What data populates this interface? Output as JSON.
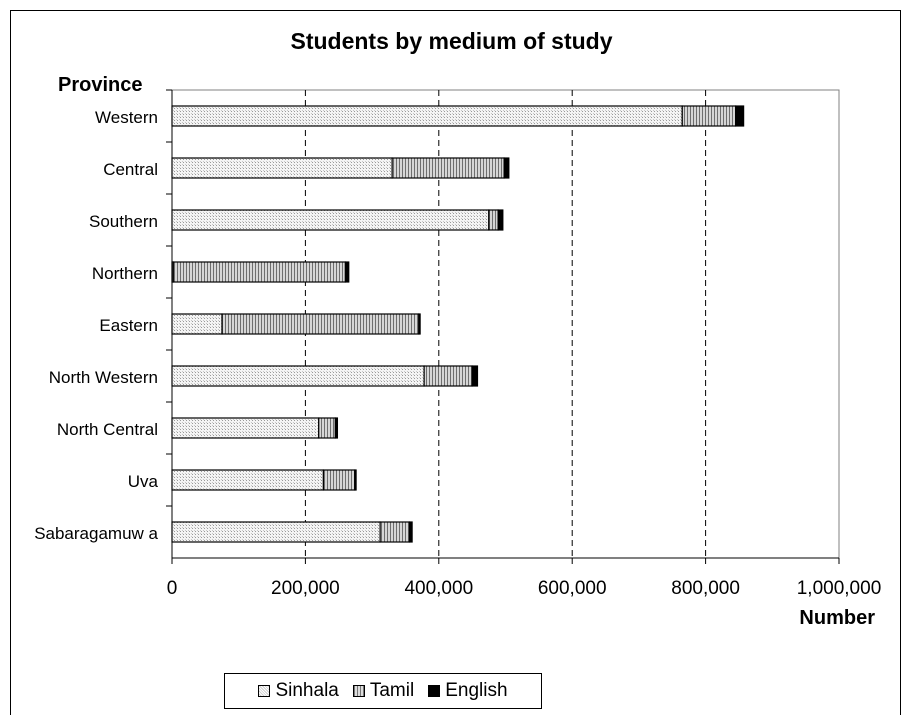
{
  "chart_data": {
    "type": "bar",
    "orientation": "horizontal",
    "stacked": true,
    "title": "Students by medium of study",
    "ylabel": "Province",
    "xlabel": "Number",
    "categories": [
      "Western",
      "Central",
      "Southern",
      "Northern",
      "Eastern",
      "North Western",
      "North Central",
      "Uva",
      "Sabaragamuw a"
    ],
    "series": [
      {
        "name": "Sinhala",
        "values": [
          765000,
          330000,
          475000,
          2000,
          75000,
          378000,
          220000,
          227000,
          312000
        ],
        "color": "#ebebeb"
      },
      {
        "name": "Tamil",
        "values": [
          80000,
          168000,
          14000,
          258000,
          295000,
          72000,
          25000,
          47000,
          44000
        ],
        "color": "#b4b4b4"
      },
      {
        "name": "English",
        "values": [
          12000,
          7000,
          7000,
          5000,
          2000,
          8000,
          3000,
          2000,
          4000
        ],
        "color": "#000000"
      }
    ],
    "xlim": [
      0,
      1000000
    ],
    "xticks": [
      0,
      200000,
      400000,
      600000,
      800000,
      1000000
    ],
    "xtick_labels": [
      "0",
      "200,000",
      "400,000",
      "600,000",
      "800,000",
      "1,000,000"
    ],
    "grid": "vertical dashed",
    "legend_position": "bottom"
  }
}
